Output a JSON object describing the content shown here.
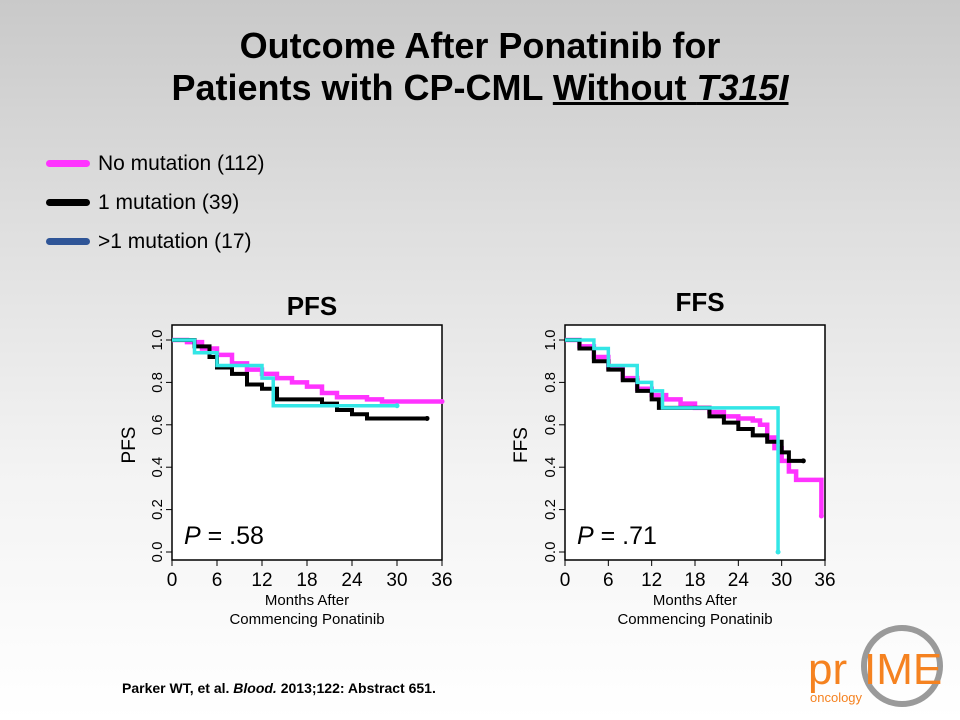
{
  "title": {
    "line1": "Outcome After Ponatinib for",
    "line2_prefix": "Patients with CP-CML ",
    "line2_under": "Without ",
    "line2_italic": "T315I"
  },
  "legend": [
    {
      "label": "No mutation (112)",
      "color": "#ff33ff"
    },
    {
      "label": "1 mutation (39)",
      "color": "#000000"
    },
    {
      "label": ">1 mutation (17)",
      "color": "#2f5597"
    }
  ],
  "chart_data": [
    {
      "type": "line",
      "title": "PFS",
      "ylabel": "PFS",
      "xlabel_line1": "Months After",
      "xlabel_line2": "Commencing Ponatinib",
      "xticks": [
        0,
        6,
        12,
        18,
        24,
        30,
        36
      ],
      "yticks": [
        "0.0",
        "0.2",
        "0.4",
        "0.6",
        "0.8",
        "1.0"
      ],
      "xlim": [
        0,
        36
      ],
      "ylim": [
        0,
        1
      ],
      "annotation_p": "P",
      "annotation_value": " = .58",
      "series": [
        {
          "name": "No mutation (112)",
          "color": "#ff33ff",
          "x": [
            0,
            2,
            4,
            6,
            8,
            10,
            12,
            14,
            16,
            18,
            20,
            22,
            24,
            26,
            28,
            30,
            34,
            36
          ],
          "y": [
            1.0,
            0.99,
            0.96,
            0.93,
            0.89,
            0.86,
            0.84,
            0.82,
            0.8,
            0.78,
            0.75,
            0.73,
            0.73,
            0.72,
            0.71,
            0.71,
            0.71,
            0.71
          ]
        },
        {
          "name": "1 mutation (39)",
          "color": "#000000",
          "x": [
            0,
            3,
            5,
            6,
            8,
            10,
            12,
            14,
            20,
            22,
            24,
            26,
            34
          ],
          "y": [
            1.0,
            0.97,
            0.92,
            0.87,
            0.84,
            0.79,
            0.77,
            0.72,
            0.7,
            0.67,
            0.65,
            0.63,
            0.63
          ]
        },
        {
          "name": ">1 mutation (17)",
          "color": "#33e6e6",
          "x": [
            0,
            3,
            6,
            12,
            13.5,
            21,
            30
          ],
          "y": [
            1.0,
            0.94,
            0.88,
            0.82,
            0.69,
            0.69,
            0.69
          ]
        }
      ]
    },
    {
      "type": "line",
      "title": "FFS",
      "ylabel": "FFS",
      "xlabel_line1": "Months After",
      "xlabel_line2": "Commencing Ponatinib",
      "xticks": [
        0,
        6,
        12,
        18,
        24,
        30,
        36
      ],
      "yticks": [
        "0.0",
        "0.2",
        "0.4",
        "0.6",
        "0.8",
        "1.0"
      ],
      "xlim": [
        0,
        36
      ],
      "ylim": [
        0,
        1
      ],
      "annotation_p": "P",
      "annotation_value": " = .71",
      "series": [
        {
          "name": "No mutation (112)",
          "color": "#ff33ff",
          "x": [
            0,
            2,
            4,
            6,
            8,
            10,
            12,
            14,
            16,
            18,
            20,
            22,
            24,
            26,
            27,
            28,
            29,
            30,
            31,
            32,
            34,
            35,
            35.5
          ],
          "y": [
            1.0,
            0.97,
            0.92,
            0.87,
            0.82,
            0.77,
            0.74,
            0.72,
            0.7,
            0.68,
            0.66,
            0.64,
            0.63,
            0.62,
            0.6,
            0.54,
            0.49,
            0.43,
            0.38,
            0.34,
            0.34,
            0.34,
            0.17
          ]
        },
        {
          "name": "1 mutation (39)",
          "color": "#000000",
          "x": [
            0,
            2,
            4,
            6,
            8,
            10,
            12,
            13,
            16,
            20,
            22,
            24,
            26,
            28,
            30,
            31,
            33
          ],
          "y": [
            1.0,
            0.96,
            0.9,
            0.86,
            0.81,
            0.76,
            0.72,
            0.68,
            0.68,
            0.64,
            0.61,
            0.58,
            0.55,
            0.52,
            0.47,
            0.43,
            0.43
          ]
        },
        {
          "name": ">1 mutation (17)",
          "color": "#33e6e6",
          "x": [
            0,
            4,
            6,
            10,
            12,
            13.5,
            22,
            29.5,
            29.5
          ],
          "y": [
            1.0,
            0.96,
            0.88,
            0.8,
            0.76,
            0.68,
            0.68,
            0.68,
            0.0
          ]
        }
      ]
    }
  ],
  "citation": {
    "authors": "Parker WT, et al. ",
    "journal": "Blood.",
    "rest": " 2013;122: Abstract 651."
  },
  "logo": {
    "left": "pr",
    "right": "IME",
    "sub": "oncology",
    "color": "#f58220"
  }
}
